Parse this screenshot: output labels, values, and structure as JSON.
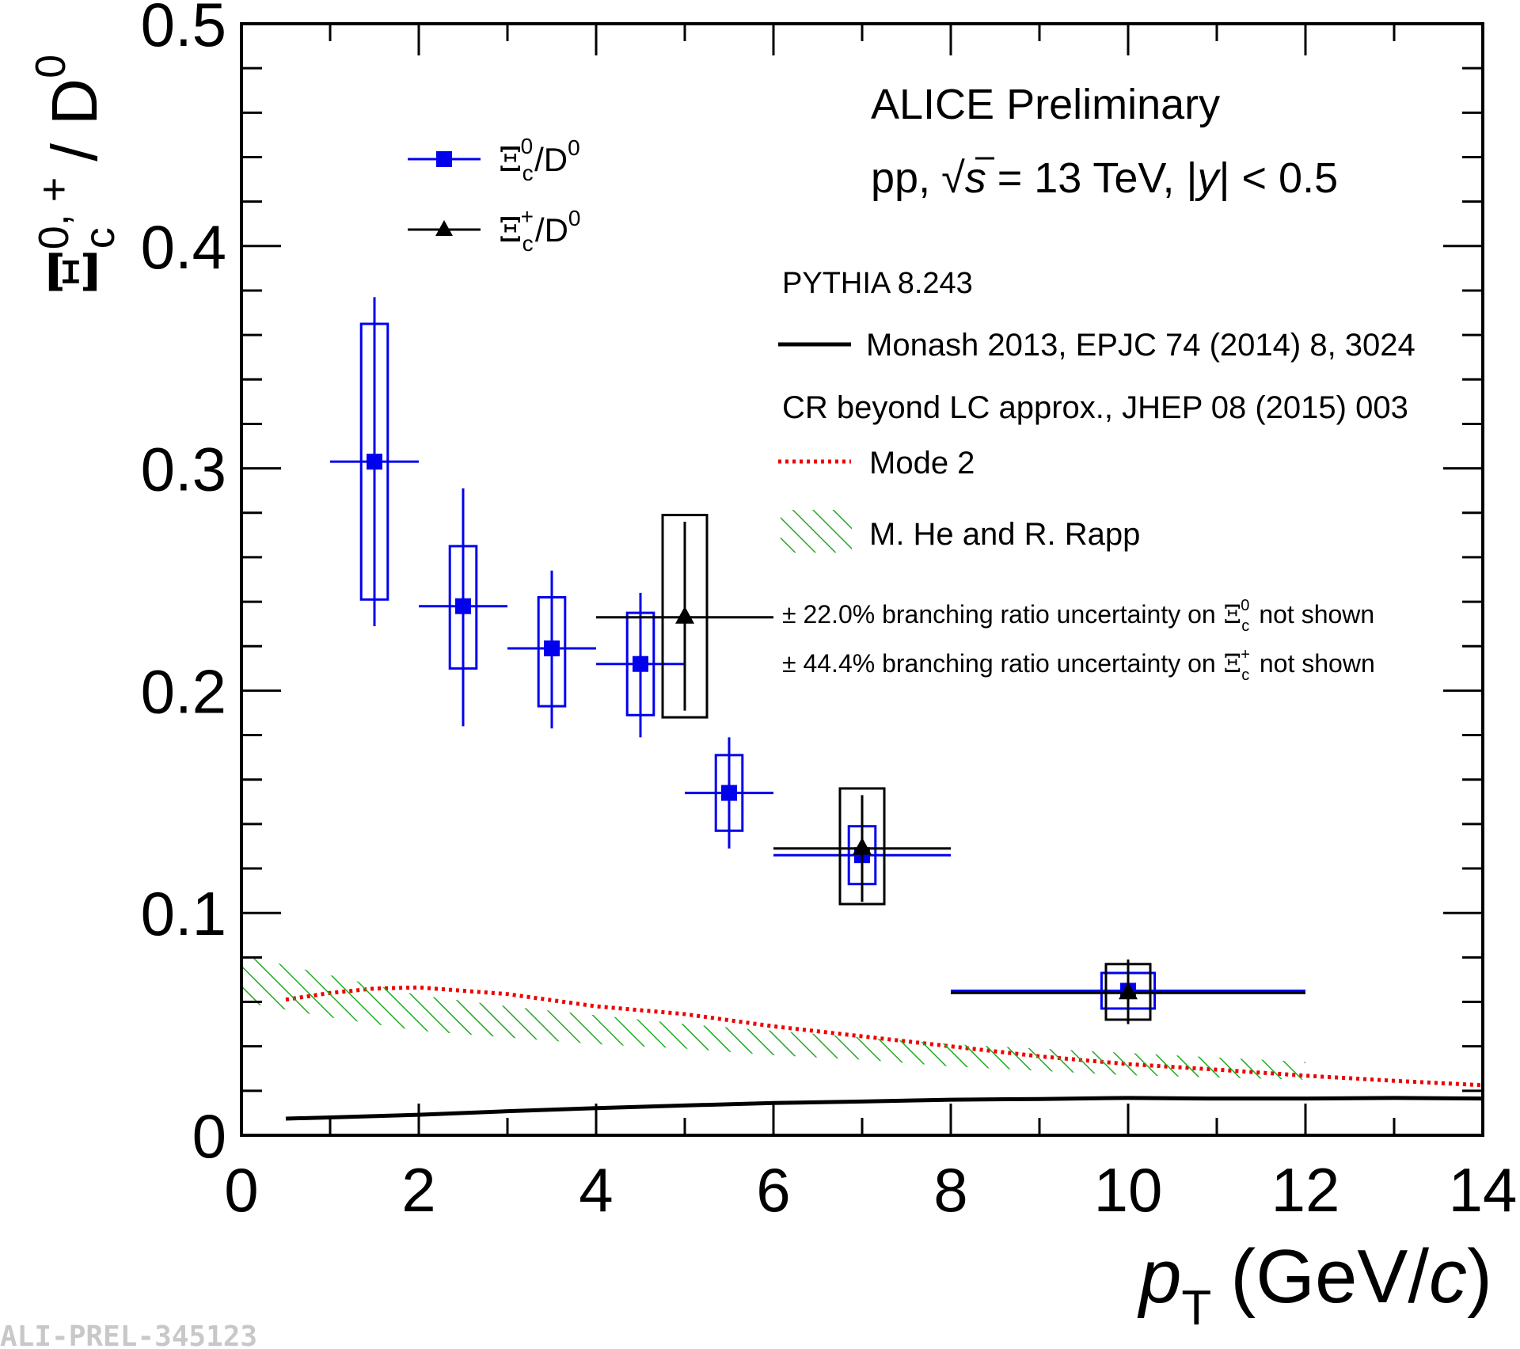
{
  "chart_data": {
    "type": "scatter",
    "xlabel_main": "p",
    "xlabel_sub": "T",
    "xlabel_unit_open": "(GeV/",
    "xlabel_unit_c": "c",
    "xlabel_unit_close": ")",
    "ylabel_xi": "Ξ",
    "ylabel_sub": "c",
    "ylabel_sup": "0, +",
    "ylabel_rest": "/ D",
    "ylabel_rest_sup": "0",
    "xlim": [
      0,
      14
    ],
    "ylim": [
      0,
      0.5
    ],
    "x_ticks": [
      {
        "value": 0,
        "label": "0"
      },
      {
        "value": 2,
        "label": "2"
      },
      {
        "value": 4,
        "label": "4"
      },
      {
        "value": 6,
        "label": "6"
      },
      {
        "value": 8,
        "label": "8"
      },
      {
        "value": 10,
        "label": "10"
      },
      {
        "value": 12,
        "label": "12"
      },
      {
        "value": 14,
        "label": "14"
      }
    ],
    "y_ticks": [
      {
        "value": 0,
        "label": "0"
      },
      {
        "value": 0.1,
        "label": "0.1"
      },
      {
        "value": 0.2,
        "label": "0.2"
      },
      {
        "value": 0.3,
        "label": "0.3"
      },
      {
        "value": 0.4,
        "label": "0.4"
      },
      {
        "value": 0.5,
        "label": "0.5"
      }
    ],
    "header": {
      "line1": "ALICE Preliminary",
      "line2_pre": "pp,",
      "line2_sqrt": "√",
      "line2_s": "s",
      "line2_mid": "= 13 TeV, |",
      "line2_y": "y",
      "line2_post": "| < 0.5"
    },
    "series": [
      {
        "name": "Ξc0/D0",
        "label_base": "Ξ",
        "label_sub": "c",
        "label_sup": "0",
        "label_rest": "/D",
        "label_rest_sup": "0",
        "marker": "square",
        "color": "#0000ee",
        "points": [
          {
            "x": 1.5,
            "y": 0.303,
            "xerr": 0.5,
            "stat_lo": 0.229,
            "stat_hi": 0.377,
            "sys_lo": 0.241,
            "sys_hi": 0.365,
            "sys_half": 0.15
          },
          {
            "x": 2.5,
            "y": 0.238,
            "xerr": 0.5,
            "stat_lo": 0.184,
            "stat_hi": 0.291,
            "sys_lo": 0.21,
            "sys_hi": 0.265,
            "sys_half": 0.15
          },
          {
            "x": 3.5,
            "y": 0.219,
            "xerr": 0.5,
            "stat_lo": 0.183,
            "stat_hi": 0.254,
            "sys_lo": 0.193,
            "sys_hi": 0.242,
            "sys_half": 0.15
          },
          {
            "x": 4.5,
            "y": 0.212,
            "xerr": 0.5,
            "stat_lo": 0.179,
            "stat_hi": 0.244,
            "sys_lo": 0.189,
            "sys_hi": 0.235,
            "sys_half": 0.15
          },
          {
            "x": 5.5,
            "y": 0.154,
            "xerr": 0.5,
            "stat_lo": 0.129,
            "stat_hi": 0.179,
            "sys_lo": 0.137,
            "sys_hi": 0.171,
            "sys_half": 0.15
          },
          {
            "x": 7.0,
            "y": 0.126,
            "xerr": 1.0,
            "stat_lo": 0.107,
            "stat_hi": 0.147,
            "sys_lo": 0.113,
            "sys_hi": 0.139,
            "sys_half": 0.15
          },
          {
            "x": 10.0,
            "y": 0.065,
            "xerr": 2.0,
            "stat_lo": 0.051,
            "stat_hi": 0.079,
            "sys_lo": 0.057,
            "sys_hi": 0.073,
            "sys_half": 0.3
          }
        ]
      },
      {
        "name": "Ξc+/D0",
        "label_base": "Ξ",
        "label_sub": "c",
        "label_sup": "+",
        "label_rest": "/D",
        "label_rest_sup": "0",
        "marker": "triangle",
        "color": "#000000",
        "points": [
          {
            "x": 5.0,
            "y": 0.233,
            "xerr": 1.0,
            "stat_lo": 0.191,
            "stat_hi": 0.276,
            "sys_lo": 0.188,
            "sys_hi": 0.279,
            "sys_half": 0.25
          },
          {
            "x": 7.0,
            "y": 0.129,
            "xerr": 1.0,
            "stat_lo": 0.105,
            "stat_hi": 0.153,
            "sys_lo": 0.104,
            "sys_hi": 0.156,
            "sys_half": 0.25
          },
          {
            "x": 10.0,
            "y": 0.064,
            "xerr": 2.0,
            "stat_lo": 0.05,
            "stat_hi": 0.079,
            "sys_lo": 0.052,
            "sys_hi": 0.077,
            "sys_half": 0.25
          }
        ]
      }
    ],
    "models": [
      {
        "name": "Monash 2013, EPJC 74 (2014) 8, 3024",
        "style": "solid",
        "color": "#000000",
        "x": [
          0.5,
          1,
          2,
          3,
          4,
          5,
          6,
          7,
          8,
          9,
          10,
          11,
          12,
          13,
          14
        ],
        "y": [
          0.0075,
          0.008,
          0.0092,
          0.0108,
          0.0122,
          0.0134,
          0.0145,
          0.0152,
          0.016,
          0.0163,
          0.0168,
          0.0165,
          0.0165,
          0.0168,
          0.0165
        ]
      },
      {
        "name": "Mode 2",
        "style": "dotted",
        "color": "#ee0000",
        "x": [
          0.5,
          1,
          1.5,
          2,
          3,
          4,
          5,
          6,
          7,
          8,
          9,
          10,
          11,
          12,
          13,
          14
        ],
        "y": [
          0.061,
          0.064,
          0.066,
          0.0665,
          0.0635,
          0.058,
          0.0545,
          0.049,
          0.0445,
          0.04,
          0.0355,
          0.032,
          0.0295,
          0.0268,
          0.0245,
          0.0225
        ]
      },
      {
        "name": "M. He and R. Rapp",
        "style": "hatched",
        "color": "#22aa22",
        "x": [
          0.0,
          1,
          2,
          3,
          4,
          5,
          6,
          7,
          8,
          9,
          10,
          11,
          12
        ],
        "y_lo": [
          0.06,
          0.053,
          0.047,
          0.044,
          0.041,
          0.039,
          0.036,
          0.034,
          0.031,
          0.029,
          0.027,
          0.026,
          0.025
        ],
        "y_hi": [
          0.081,
          0.072,
          0.063,
          0.058,
          0.054,
          0.05,
          0.047,
          0.044,
          0.041,
          0.039,
          0.037,
          0.035,
          0.033
        ]
      }
    ],
    "model_header_1": "PYTHIA 8.243",
    "model_header_2": "CR beyond LC approx., JHEP 08 (2015) 003",
    "notes": [
      {
        "pre": "± 22.0% branching ratio uncertainty on",
        "xi": "Ξ",
        "sub": "c",
        "sup": "0",
        "post": "not shown"
      },
      {
        "pre": "± 44.4% branching ratio uncertainty on",
        "xi": "Ξ",
        "sub": "c",
        "sup": "+",
        "post": "not shown"
      }
    ],
    "legend_position": "top-right",
    "grid": false
  },
  "watermark": "ALI-PREL-345123",
  "colors": {
    "blue": "#0000ee",
    "black": "#000000",
    "red": "#ee0000",
    "green": "#22aa22"
  }
}
